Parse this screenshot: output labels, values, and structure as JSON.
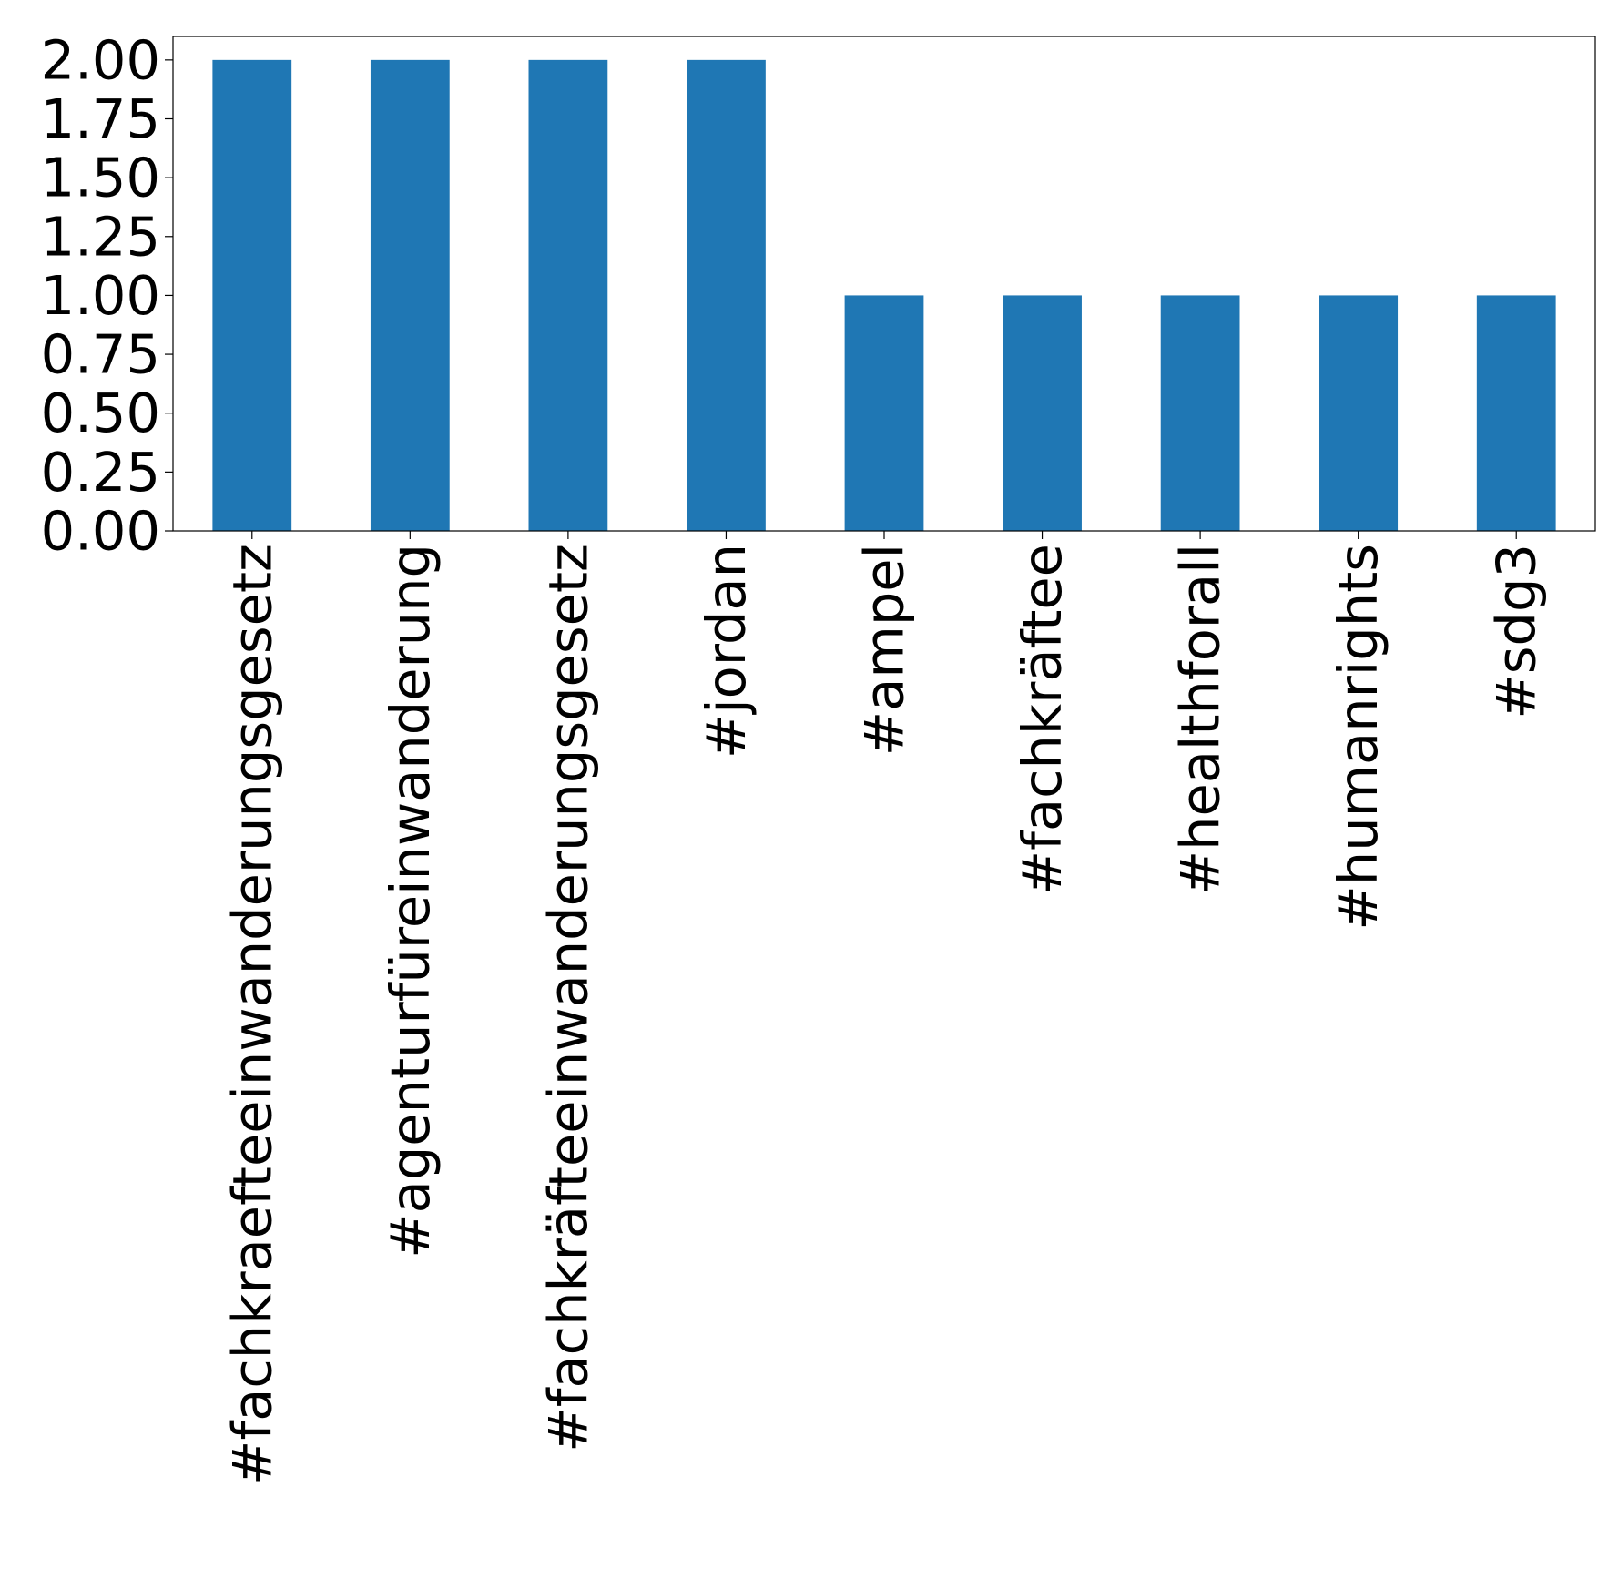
{
  "chart_data": {
    "type": "bar",
    "categories": [
      "#fachkraefteeinwanderungsgesetz",
      "#agenturfüreinwanderung",
      "#fachkräfteeinwanderungsgesetz",
      "#jordan",
      "#ampel",
      "#fachkräftee",
      "#healthforall",
      "#humanrights",
      "#sdg3"
    ],
    "values": [
      2,
      2,
      2,
      2,
      1,
      1,
      1,
      1,
      1
    ],
    "ylim": [
      0,
      2.1
    ],
    "yticks": [
      "0.00",
      "0.25",
      "0.50",
      "0.75",
      "1.00",
      "1.25",
      "1.50",
      "1.75",
      "2.00"
    ],
    "title": "",
    "xlabel": "",
    "ylabel": "",
    "grid": false,
    "legend": "none",
    "bar_color": "#1f77b4"
  }
}
